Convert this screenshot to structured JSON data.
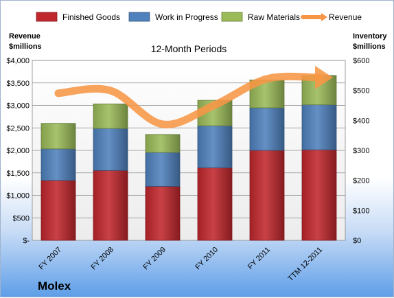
{
  "company": "Molex",
  "chart_data": {
    "type": "bar",
    "stacked": true,
    "title": "12-Month Periods",
    "y_left_label": [
      "Revenue",
      "$millions"
    ],
    "y_right_label": [
      "Inventory",
      "$millions"
    ],
    "categories": [
      "FY 2007",
      "FY 2008",
      "FY 2009",
      "FY 2010",
      "FY 2011",
      "TTM 12-2011"
    ],
    "y_left_ticks": [
      "$-",
      "$500",
      "$1,000",
      "$1,500",
      "$2,000",
      "$2,500",
      "$3,000",
      "$3,500",
      "$4,000"
    ],
    "y_right_ticks": [
      "$0",
      "$100",
      "$200",
      "$300",
      "$400",
      "$500",
      "$600"
    ],
    "ylim_left": [
      0,
      4000
    ],
    "ylim_right": [
      0,
      600
    ],
    "grid": true,
    "legend_position": "top",
    "series": [
      {
        "name": "Finished Goods",
        "axis": "right",
        "color": "#c0272d",
        "values": [
          200,
          233,
          180,
          242,
          300,
          302
        ]
      },
      {
        "name": "Work in Progress",
        "axis": "right",
        "color": "#4f81bd",
        "values": [
          105,
          140,
          113,
          140,
          142,
          150
        ]
      },
      {
        "name": "Raw Materials",
        "axis": "right",
        "color": "#9bbb59",
        "values": [
          85,
          82,
          60,
          85,
          93,
          98
        ]
      },
      {
        "name": "Revenue",
        "type": "line",
        "axis": "left",
        "color": "#f79646",
        "values": [
          3270,
          3330,
          2580,
          3010,
          3590,
          3620
        ]
      }
    ]
  }
}
